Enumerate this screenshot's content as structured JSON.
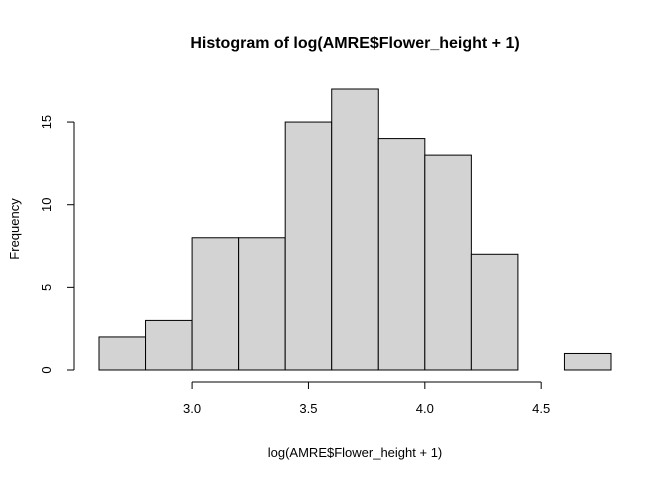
{
  "chart_data": {
    "type": "bar",
    "title": "Histogram of log(AMRE$Flower_height + 1)",
    "xlabel": "log(AMRE$Flower_height + 1)",
    "ylabel": "Frequency",
    "bin_edges": [
      2.6,
      2.8,
      3.0,
      3.2,
      3.4,
      3.6,
      3.8,
      4.0,
      4.2,
      4.4,
      4.6,
      4.8
    ],
    "values": [
      2,
      3,
      8,
      8,
      15,
      17,
      14,
      13,
      7,
      0,
      1
    ],
    "x_ticks": [
      "3.0",
      "3.5",
      "4.0",
      "4.5"
    ],
    "x_tick_values": [
      3.0,
      3.5,
      4.0,
      4.5
    ],
    "y_ticks": [
      "0",
      "5",
      "10",
      "15"
    ],
    "y_tick_values": [
      0,
      5,
      10,
      15
    ],
    "xlim": [
      2.6,
      4.8
    ],
    "ylim": [
      0,
      17
    ],
    "grid": false,
    "colors": {
      "bar_fill": "#d3d3d3",
      "bar_stroke": "#000000"
    }
  }
}
